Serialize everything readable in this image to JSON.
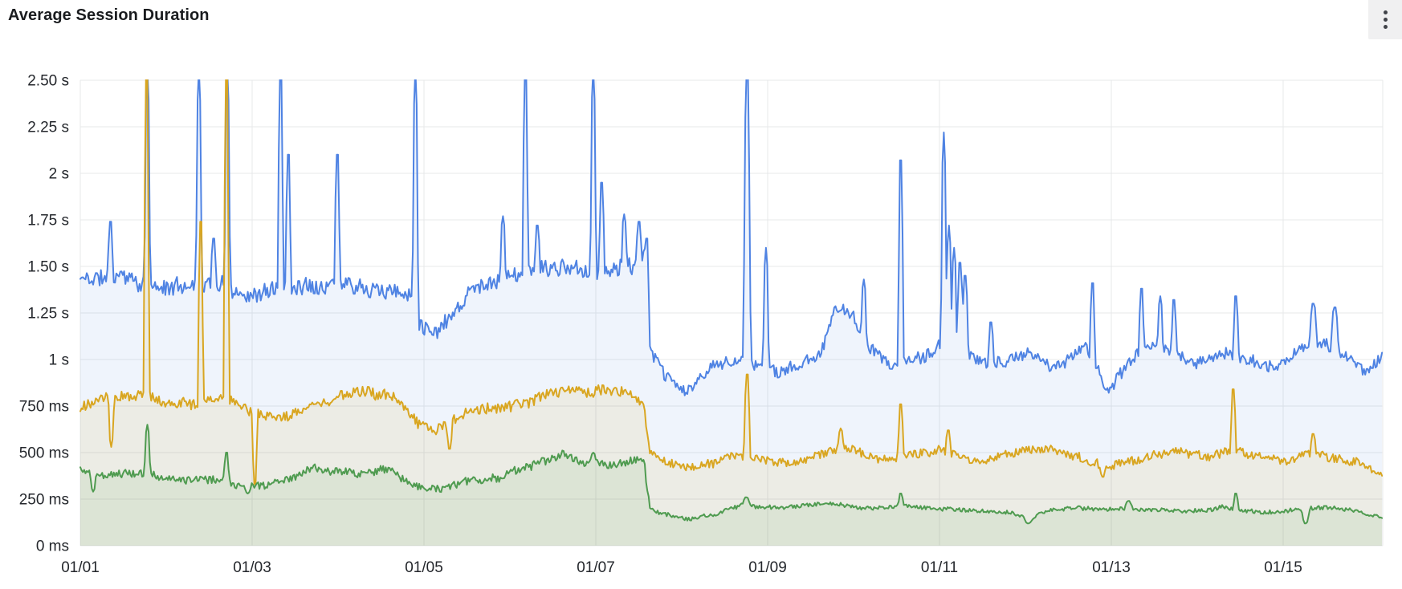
{
  "header": {
    "title": "Average Session Duration",
    "menu_icon": "kebab-vertical-icon"
  },
  "colors": {
    "background": "#ffffff",
    "title_text": "#1a1c1f",
    "axis_label_text": "#24272c",
    "gridline": "#e7e8ea",
    "menu_button_bg": "#f0f0f1",
    "menu_dot": "#404349",
    "series_blue": "#4F83E3",
    "series_yellow": "#D9A621",
    "series_green": "#4F9B50"
  },
  "chart_data": {
    "type": "line",
    "title": "Average Session Duration",
    "xlabel": "",
    "ylabel": "",
    "x_unit": "days since 01/01",
    "y_unit": "seconds",
    "x_range_days": [
      0,
      15.16
    ],
    "ylim": [
      0,
      2.5
    ],
    "grid": true,
    "legend": false,
    "x_ticks": [
      {
        "day": 0,
        "label": "01/01"
      },
      {
        "day": 2,
        "label": "01/03"
      },
      {
        "day": 4,
        "label": "01/05"
      },
      {
        "day": 6,
        "label": "01/07"
      },
      {
        "day": 8,
        "label": "01/09"
      },
      {
        "day": 10,
        "label": "01/11"
      },
      {
        "day": 12,
        "label": "01/13"
      },
      {
        "day": 14,
        "label": "01/15"
      }
    ],
    "y_ticks": [
      {
        "value": 2.5,
        "label": "2.50 s"
      },
      {
        "value": 2.25,
        "label": "2.25 s"
      },
      {
        "value": 2.0,
        "label": "2 s"
      },
      {
        "value": 1.75,
        "label": "1.75 s"
      },
      {
        "value": 1.5,
        "label": "1.50 s"
      },
      {
        "value": 1.25,
        "label": "1.25 s"
      },
      {
        "value": 1.0,
        "label": "1 s"
      },
      {
        "value": 0.75,
        "label": "750 ms"
      },
      {
        "value": 0.5,
        "label": "500 ms"
      },
      {
        "value": 0.25,
        "label": "250 ms"
      },
      {
        "value": 0,
        "label": "0 ms"
      }
    ],
    "clip_note": "spikes above 2.5 s are clipped at the top of the plot",
    "step_change": {
      "day": 6.6,
      "description": "all three series drop to a lower level"
    },
    "series": [
      {
        "name": "blue",
        "color": "#4F83E3",
        "fill_opacity": 0.09,
        "line_width": 2,
        "seed": 11,
        "jitter": 0.085,
        "wander": 0.016,
        "amp_scale": [
          [
            0,
            1
          ],
          [
            6.6,
            1
          ],
          [
            6.63,
            0.75
          ],
          [
            15.2,
            0.75
          ]
        ],
        "keypoints": [
          [
            0,
            1.43
          ],
          [
            0.5,
            1.45
          ],
          [
            1,
            1.38
          ],
          [
            1.5,
            1.42
          ],
          [
            2,
            1.36
          ],
          [
            2.5,
            1.41
          ],
          [
            3,
            1.45
          ],
          [
            3.5,
            1.43
          ],
          [
            3.85,
            1.38
          ],
          [
            3.95,
            1.22
          ],
          [
            4.15,
            1.18
          ],
          [
            4.35,
            1.3
          ],
          [
            4.6,
            1.42
          ],
          [
            5,
            1.47
          ],
          [
            5.5,
            1.5
          ],
          [
            6,
            1.46
          ],
          [
            6.3,
            1.5
          ],
          [
            6.45,
            1.48
          ],
          [
            6.56,
            1.55
          ],
          [
            6.63,
            1.02
          ],
          [
            6.8,
            0.9
          ],
          [
            7.05,
            0.8
          ],
          [
            7.3,
            0.93
          ],
          [
            7.6,
            1.0
          ],
          [
            7.9,
            0.96
          ],
          [
            8.2,
            0.95
          ],
          [
            8.6,
            1.02
          ],
          [
            8.8,
            1.26
          ],
          [
            9.0,
            1.22
          ],
          [
            9.15,
            1.05
          ],
          [
            9.4,
            0.97
          ],
          [
            9.8,
            1.0
          ],
          [
            10.05,
            1.08
          ],
          [
            10.35,
            1.0
          ],
          [
            10.7,
            0.97
          ],
          [
            11,
            1.02
          ],
          [
            11.4,
            0.97
          ],
          [
            11.7,
            1.08
          ],
          [
            11.95,
            0.85
          ],
          [
            12.15,
            0.95
          ],
          [
            12.4,
            1.08
          ],
          [
            12.7,
            1.04
          ],
          [
            13,
            0.97
          ],
          [
            13.3,
            1.04
          ],
          [
            13.6,
            1.0
          ],
          [
            13.9,
            0.94
          ],
          [
            14.2,
            1.04
          ],
          [
            14.5,
            1.08
          ],
          [
            14.8,
            1.0
          ],
          [
            15.0,
            0.94
          ],
          [
            15.16,
            1.03
          ]
        ],
        "spikes": [
          [
            0.35,
            1.74
          ],
          [
            0.78,
            2.56
          ],
          [
            1.38,
            2.56
          ],
          [
            1.55,
            1.65
          ],
          [
            1.71,
            2.56
          ],
          [
            2.33,
            2.56
          ],
          [
            2.42,
            2.1
          ],
          [
            2.99,
            2.1
          ],
          [
            3.9,
            2.56
          ],
          [
            4.92,
            1.77
          ],
          [
            5.18,
            2.56
          ],
          [
            5.32,
            1.72
          ],
          [
            5.97,
            2.56
          ],
          [
            6.07,
            1.95
          ],
          [
            6.33,
            1.78
          ],
          [
            6.5,
            1.74
          ],
          [
            6.59,
            1.65
          ],
          [
            7.76,
            2.56,
            0.045
          ],
          [
            7.98,
            1.6
          ],
          [
            9.12,
            1.43
          ],
          [
            9.55,
            2.07
          ],
          [
            10.05,
            2.22
          ],
          [
            10.11,
            1.72
          ],
          [
            10.17,
            1.6
          ],
          [
            10.24,
            1.52,
            0.04
          ],
          [
            10.3,
            1.45,
            0.04
          ],
          [
            10.6,
            1.2
          ],
          [
            11.78,
            1.41
          ],
          [
            12.35,
            1.38
          ],
          [
            12.57,
            1.34
          ],
          [
            12.73,
            1.32
          ],
          [
            13.45,
            1.34
          ],
          [
            14.35,
            1.3,
            0.05
          ],
          [
            14.6,
            1.28,
            0.05
          ]
        ]
      },
      {
        "name": "yellow",
        "color": "#D9A621",
        "fill_opacity": 0.1,
        "line_width": 2,
        "seed": 23,
        "jitter": 0.055,
        "wander": 0.011,
        "amp_scale": [
          [
            0,
            1
          ],
          [
            6.6,
            1
          ],
          [
            6.63,
            0.8
          ],
          [
            15.2,
            0.8
          ]
        ],
        "keypoints": [
          [
            0,
            0.75
          ],
          [
            0.3,
            0.78
          ],
          [
            0.7,
            0.8
          ],
          [
            1,
            0.78
          ],
          [
            1.3,
            0.76
          ],
          [
            1.6,
            0.8
          ],
          [
            1.9,
            0.73
          ],
          [
            2.2,
            0.7
          ],
          [
            2.5,
            0.72
          ],
          [
            2.8,
            0.78
          ],
          [
            3.1,
            0.8
          ],
          [
            3.4,
            0.82
          ],
          [
            3.7,
            0.78
          ],
          [
            3.95,
            0.65
          ],
          [
            4.15,
            0.63
          ],
          [
            4.5,
            0.72
          ],
          [
            4.8,
            0.75
          ],
          [
            5.1,
            0.77
          ],
          [
            5.4,
            0.8
          ],
          [
            5.7,
            0.85
          ],
          [
            5.95,
            0.83
          ],
          [
            6.2,
            0.82
          ],
          [
            6.45,
            0.8
          ],
          [
            6.56,
            0.76
          ],
          [
            6.63,
            0.5
          ],
          [
            6.8,
            0.46
          ],
          [
            7.05,
            0.43
          ],
          [
            7.3,
            0.44
          ],
          [
            7.6,
            0.47
          ],
          [
            7.9,
            0.46
          ],
          [
            8.3,
            0.45
          ],
          [
            8.7,
            0.5
          ],
          [
            9.0,
            0.52
          ],
          [
            9.3,
            0.47
          ],
          [
            9.6,
            0.5
          ],
          [
            10,
            0.52
          ],
          [
            10.4,
            0.48
          ],
          [
            10.8,
            0.5
          ],
          [
            11.2,
            0.52
          ],
          [
            11.6,
            0.48
          ],
          [
            11.9,
            0.42
          ],
          [
            12.2,
            0.47
          ],
          [
            12.5,
            0.5
          ],
          [
            12.8,
            0.52
          ],
          [
            13.1,
            0.49
          ],
          [
            13.4,
            0.52
          ],
          [
            13.7,
            0.48
          ],
          [
            14.0,
            0.46
          ],
          [
            14.3,
            0.5
          ],
          [
            14.6,
            0.48
          ],
          [
            14.9,
            0.45
          ],
          [
            15.16,
            0.4
          ]
        ],
        "spikes": [
          [
            0.36,
            0.53
          ],
          [
            0.77,
            2.56
          ],
          [
            1.4,
            1.74
          ],
          [
            1.7,
            2.56
          ],
          [
            2.03,
            0.33
          ],
          [
            4.3,
            0.52
          ],
          [
            7.76,
            0.92,
            0.04
          ],
          [
            8.85,
            0.63
          ],
          [
            9.55,
            0.76
          ],
          [
            10.1,
            0.62
          ],
          [
            11.9,
            0.37
          ],
          [
            13.42,
            0.84
          ],
          [
            14.35,
            0.6,
            0.04
          ]
        ]
      },
      {
        "name": "green",
        "color": "#4F9B50",
        "fill_opacity": 0.1,
        "line_width": 2,
        "seed": 37,
        "jitter": 0.042,
        "wander": 0.009,
        "amp_scale": [
          [
            0,
            1
          ],
          [
            6.6,
            1
          ],
          [
            6.63,
            0.5
          ],
          [
            15.2,
            0.5
          ]
        ],
        "keypoints": [
          [
            0,
            0.4
          ],
          [
            0.3,
            0.38
          ],
          [
            0.6,
            0.4
          ],
          [
            0.9,
            0.4
          ],
          [
            1.2,
            0.37
          ],
          [
            1.5,
            0.36
          ],
          [
            1.8,
            0.33
          ],
          [
            2.1,
            0.33
          ],
          [
            2.4,
            0.36
          ],
          [
            2.7,
            0.4
          ],
          [
            3.0,
            0.38
          ],
          [
            3.3,
            0.37
          ],
          [
            3.6,
            0.39
          ],
          [
            3.9,
            0.3
          ],
          [
            4.1,
            0.29
          ],
          [
            4.4,
            0.33
          ],
          [
            4.7,
            0.35
          ],
          [
            5.0,
            0.4
          ],
          [
            5.3,
            0.44
          ],
          [
            5.6,
            0.5
          ],
          [
            5.9,
            0.46
          ],
          [
            6.2,
            0.44
          ],
          [
            6.4,
            0.46
          ],
          [
            6.56,
            0.47
          ],
          [
            6.63,
            0.2
          ],
          [
            6.8,
            0.17
          ],
          [
            7.1,
            0.15
          ],
          [
            7.4,
            0.17
          ],
          [
            7.7,
            0.22
          ],
          [
            8.0,
            0.2
          ],
          [
            8.4,
            0.21
          ],
          [
            8.8,
            0.22
          ],
          [
            9.2,
            0.2
          ],
          [
            9.6,
            0.21
          ],
          [
            10,
            0.2
          ],
          [
            10.4,
            0.19
          ],
          [
            10.8,
            0.18
          ],
          [
            11.05,
            0.14
          ],
          [
            11.3,
            0.19
          ],
          [
            11.7,
            0.2
          ],
          [
            12.1,
            0.21
          ],
          [
            12.5,
            0.2
          ],
          [
            12.9,
            0.19
          ],
          [
            13.3,
            0.21
          ],
          [
            13.7,
            0.19
          ],
          [
            14.1,
            0.2
          ],
          [
            14.5,
            0.21
          ],
          [
            14.9,
            0.18
          ],
          [
            15.16,
            0.15
          ]
        ],
        "spikes": [
          [
            0.15,
            0.29
          ],
          [
            0.78,
            0.65
          ],
          [
            1.7,
            0.5
          ],
          [
            1.95,
            0.28
          ],
          [
            5.97,
            0.5
          ],
          [
            7.75,
            0.26,
            0.05
          ],
          [
            9.55,
            0.28
          ],
          [
            11.03,
            0.12,
            0.05
          ],
          [
            12.2,
            0.24,
            0.05
          ],
          [
            13.45,
            0.28
          ],
          [
            14.26,
            0.12,
            0.05
          ]
        ]
      }
    ]
  }
}
